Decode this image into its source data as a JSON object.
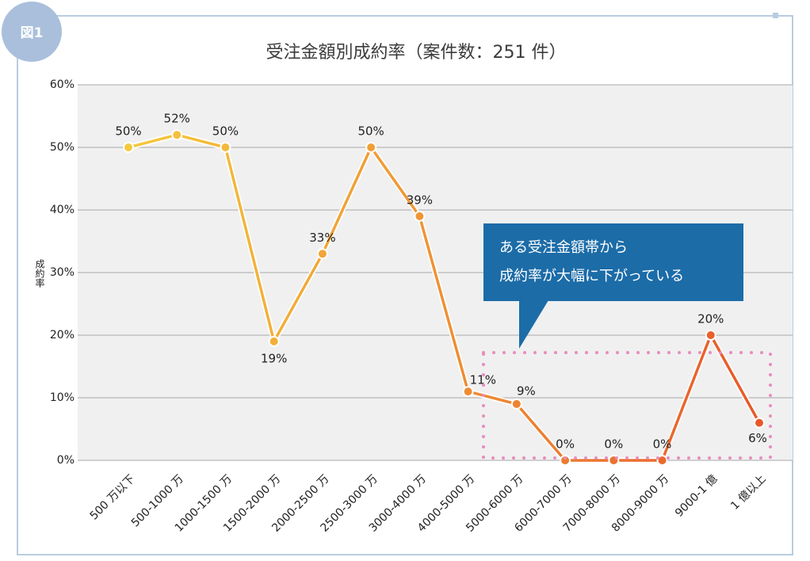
{
  "figure_label": "図1",
  "chart_data": {
    "type": "line",
    "title": "受注金額別成約率（案件数：251 件）",
    "y_label": "成約率",
    "categories": [
      "500 万以下",
      "500-1000 万",
      "1000-1500 万",
      "1500-2000 万",
      "2000-2500 万",
      "2500-3000 万",
      "3000-4000 万",
      "4000-5000 万",
      "5000-6000 万",
      "6000-7000 万",
      "7000-8000 万",
      "8000-9000 万",
      "9000-1 億",
      "1 億以上"
    ],
    "series": [
      {
        "colors": [
          "#f5c93e",
          "#e8582a"
        ],
        "values": [
          50,
          52,
          50,
          19,
          33,
          50,
          39,
          11,
          9,
          0,
          0,
          0,
          20,
          6
        ],
        "value_labels": [
          "50%",
          "52%",
          "50%",
          "19%",
          "33%",
          "50%",
          "39%",
          "11%",
          "9%",
          "0%",
          "0%",
          "0%",
          "20%",
          "6%"
        ]
      }
    ],
    "ylim": [
      0,
      60
    ],
    "yticks": [
      {
        "value": 0,
        "label": "0%"
      },
      {
        "value": 10,
        "label": "10%"
      },
      {
        "value": 20,
        "label": "20%"
      },
      {
        "value": 30,
        "label": "30%"
      },
      {
        "value": 40,
        "label": "40%"
      },
      {
        "value": 50,
        "label": "50%"
      },
      {
        "value": 60,
        "label": "60%"
      }
    ],
    "grid": true,
    "annotations": [
      "ある受注金額帯から",
      "成約率が大幅に下がっている"
    ]
  }
}
